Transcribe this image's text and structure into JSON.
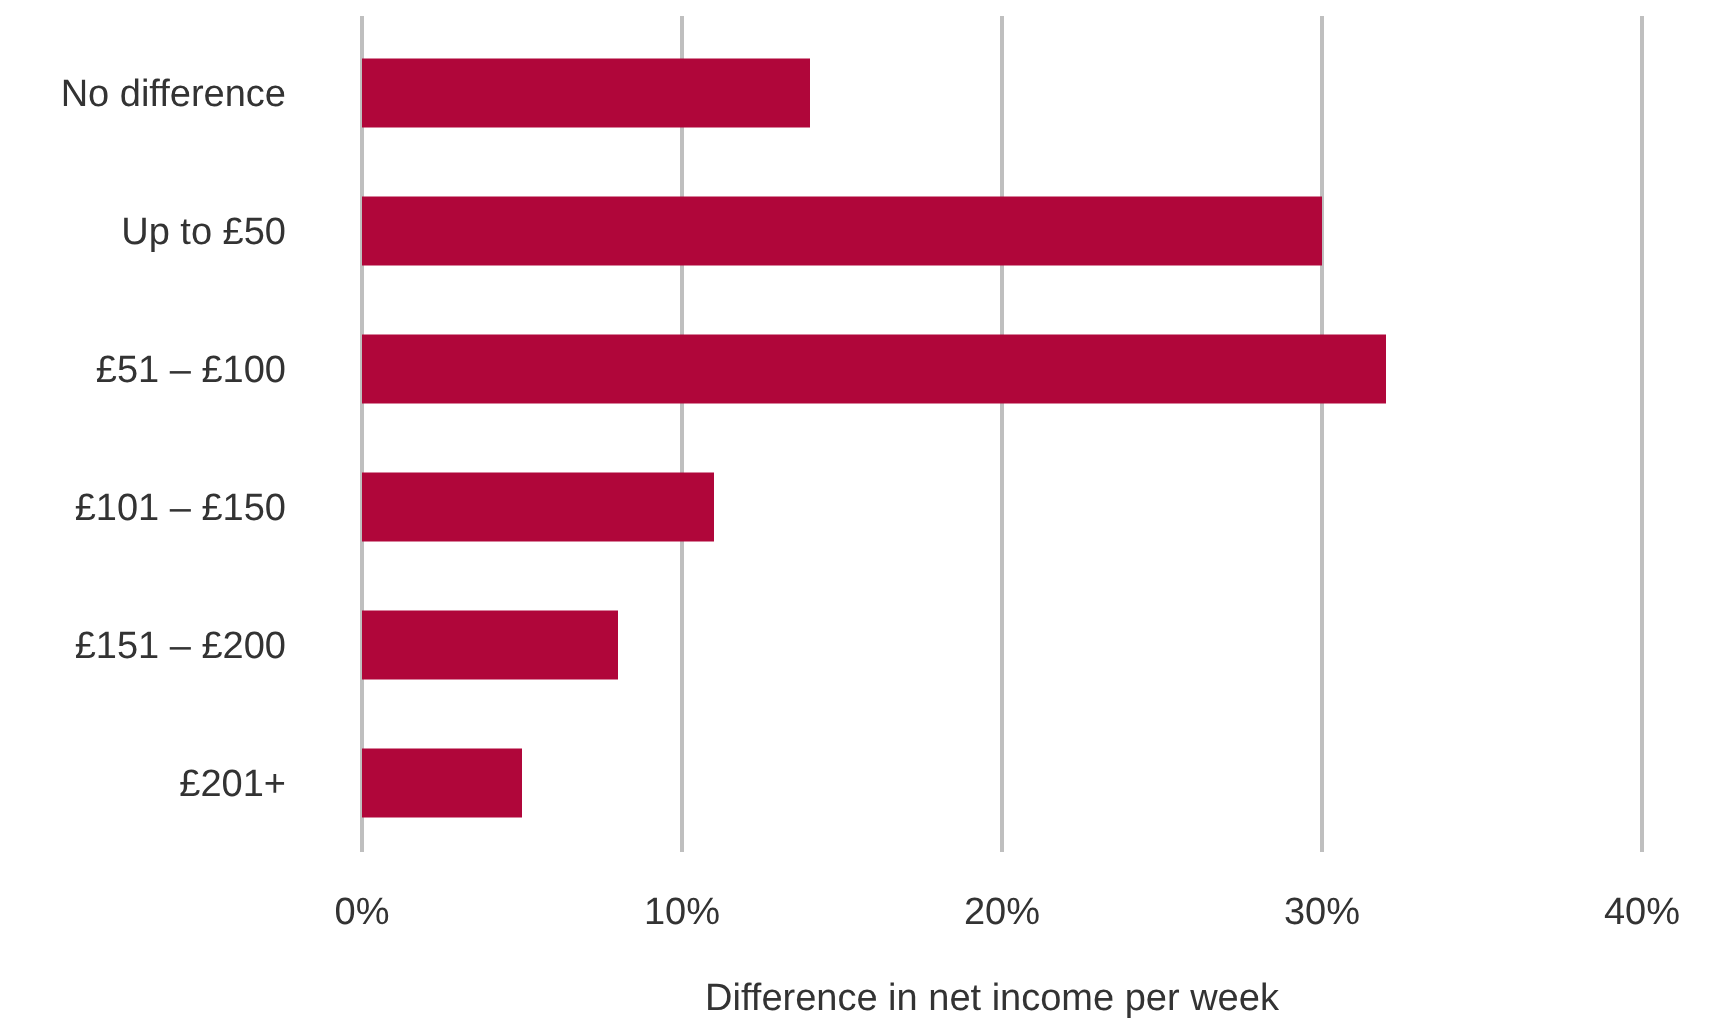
{
  "chart_data": {
    "type": "bar",
    "orientation": "horizontal",
    "categories": [
      "No difference",
      "Up to £50",
      "£51 – £100",
      "£101 – £150",
      "£151 – £200",
      "£201+"
    ],
    "values": [
      14,
      30,
      32,
      11,
      8,
      5
    ],
    "color": "#b0063a",
    "xlabel": "Difference in net income per week",
    "xlim": [
      0,
      40
    ],
    "xticks": [
      {
        "value": 0,
        "label": "0%"
      },
      {
        "value": 10,
        "label": "10%"
      },
      {
        "value": 20,
        "label": "20%"
      },
      {
        "value": 30,
        "label": "30%"
      },
      {
        "value": 40,
        "label": "40%"
      }
    ],
    "grid": "x"
  }
}
